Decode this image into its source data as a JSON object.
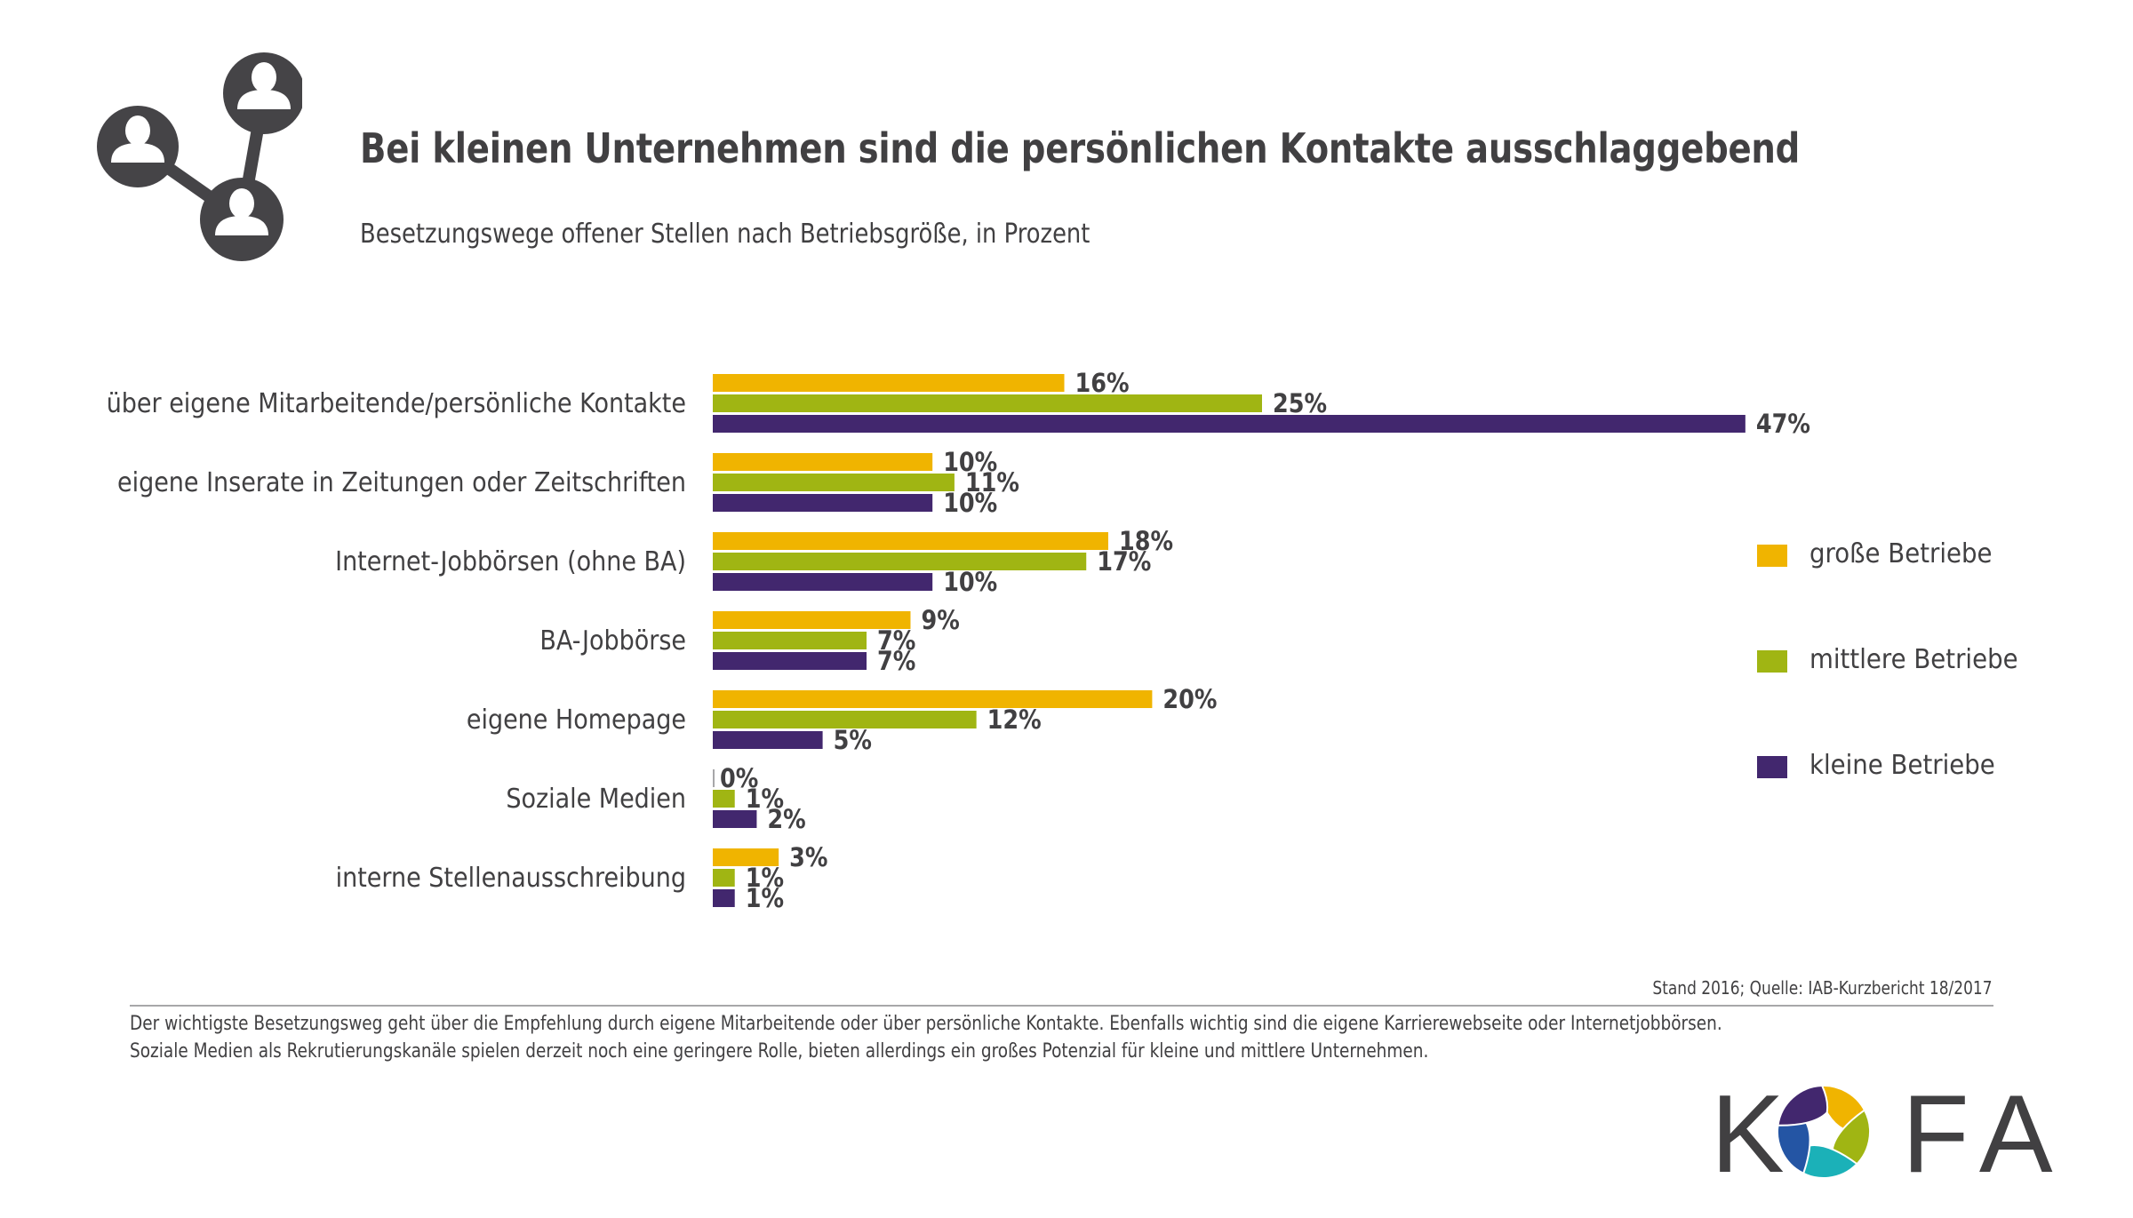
{
  "header": {
    "title": "Bei kleinen Unternehmen sind die persönlichen Kontakte ausschlaggebend",
    "subtitle": "Besetzungswege offener Stellen nach Betriebsgröße, in Prozent",
    "icon": "people-network-icon"
  },
  "chart_data": {
    "type": "bar",
    "orientation": "horizontal",
    "title": "Bei kleinen Unternehmen sind die persönlichen Kontakte ausschlaggebend",
    "subtitle": "Besetzungswege offener Stellen nach Betriebsgröße, in Prozent",
    "xlabel": "",
    "ylabel": "",
    "unit": "%",
    "xlim": [
      0,
      50
    ],
    "grid": false,
    "legend_position": "right",
    "categories": [
      "über eigene Mitarbeitende/persönliche Kontakte",
      "eigene Inserate in Zeitungen oder Zeitschriften",
      "Internet-Jobbörsen (ohne BA)",
      "BA-Jobbörse",
      "eigene Homepage",
      "Soziale Medien",
      "interne Stellenausschreibung"
    ],
    "series": [
      {
        "name": "große Betriebe",
        "color": "#f0b400",
        "values": [
          16,
          10,
          18,
          9,
          20,
          0,
          3
        ]
      },
      {
        "name": "mittlere Betriebe",
        "color": "#a0b513",
        "values": [
          25,
          11,
          17,
          7,
          12,
          1,
          1
        ]
      },
      {
        "name": "kleine Betriebe",
        "color": "#42276e",
        "values": [
          47,
          10,
          10,
          7,
          5,
          2,
          1
        ]
      }
    ],
    "zero_bar_color": "#a7a7a9"
  },
  "legend": {
    "items": [
      {
        "label": "große Betriebe",
        "color": "#f0b400"
      },
      {
        "label": "mittlere Betriebe",
        "color": "#a0b513"
      },
      {
        "label": "kleine Betriebe",
        "color": "#42276e"
      }
    ]
  },
  "footer": {
    "source": "Stand 2016; Quelle: IAB-Kurzbericht 18/2017",
    "note_line1": "Der wichtigste Besetzungsweg geht über die Empfehlung durch eigene Mitarbeitende oder über persönliche Kontakte. Ebenfalls wichtig sind die eigene Karrierewebseite oder Internetjobbörsen.",
    "note_line2": "Soziale Medien als Rekrutierungskanäle spielen derzeit noch eine geringere Rolle, bieten allerdings ein großes Potenzial für kleine und mittlere Unternehmen."
  },
  "logo": {
    "text_left": "K",
    "text_right": "FA",
    "colors": [
      "#f0b400",
      "#a0b513",
      "#1bb1b8",
      "#2455a4",
      "#42276e"
    ]
  }
}
